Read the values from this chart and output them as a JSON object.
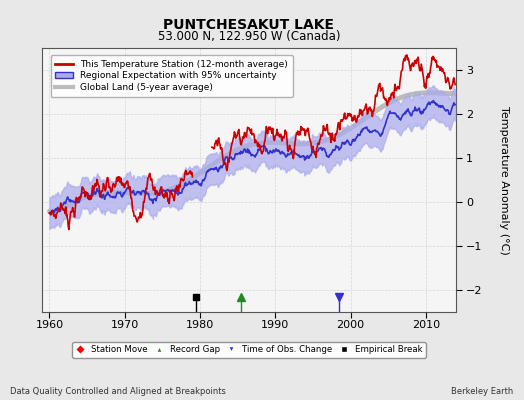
{
  "title": "PUNTCHESAKUT LAKE",
  "subtitle": "53.000 N, 122.950 W (Canada)",
  "ylabel": "Temperature Anomaly (°C)",
  "footer_left": "Data Quality Controlled and Aligned at Breakpoints",
  "footer_right": "Berkeley Earth",
  "xlim": [
    1959,
    2014
  ],
  "ylim": [
    -2.5,
    3.5
  ],
  "yticks": [
    -2,
    -1,
    0,
    1,
    2,
    3
  ],
  "xticks": [
    1960,
    1970,
    1980,
    1990,
    2000,
    2010
  ],
  "bg_color": "#e8e8e8",
  "plot_bg_color": "#f5f5f5",
  "station_color": "#cc0000",
  "regional_color": "#3333cc",
  "regional_fill_color": "#aaaaee",
  "global_color": "#bbbbbb",
  "legend_items": [
    "This Temperature Station (12-month average)",
    "Regional Expectation with 95% uncertainty",
    "Global Land (5-year average)"
  ],
  "markers": [
    {
      "type": "empirical_break",
      "year": 1979.5,
      "label": "Empirical Break"
    },
    {
      "type": "record_gap",
      "year": 1985.5,
      "label": "Record Gap"
    },
    {
      "type": "time_obs",
      "year": 1998.5,
      "label": "Time of Obs. Change"
    }
  ]
}
